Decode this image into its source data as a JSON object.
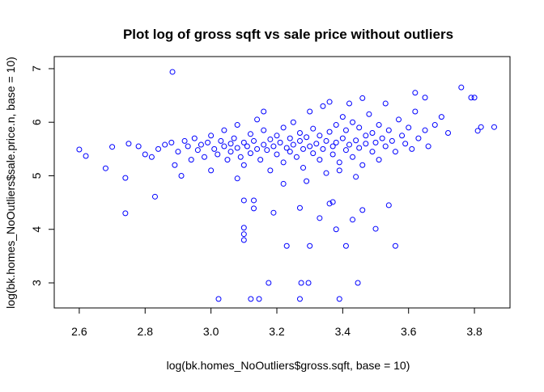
{
  "chart_data": {
    "type": "scatter",
    "title": "Plot log of gross sqft vs sale price without outliers",
    "x_label": "log(bk.homes_NoOutliers$gross.sqft, base = 10)",
    "y_label": "log(bk.homes_NoOutliers$sale.price.n, base = 10)",
    "color": "#0000ff",
    "xlim": [
      2.524,
      3.908
    ],
    "ylim": [
      2.532,
      7.226
    ],
    "xticks": [
      {
        "value": 2.6,
        "label": "2.6"
      },
      {
        "value": 2.8,
        "label": "2.8"
      },
      {
        "value": 3.0,
        "label": "3.0"
      },
      {
        "value": 3.2,
        "label": "3.2"
      },
      {
        "value": 3.4,
        "label": "3.4"
      },
      {
        "value": 3.6,
        "label": "3.6"
      },
      {
        "value": 3.8,
        "label": "3.8"
      }
    ],
    "yticks": [
      3,
      4,
      5,
      6,
      7
    ],
    "x": [
      2.883,
      2.6,
      2.62,
      2.68,
      2.7,
      2.74,
      2.74,
      2.83,
      3.023,
      3.121,
      3.146,
      3.175,
      3.274,
      3.296,
      3.27,
      3.39,
      3.446,
      3.1,
      3.1,
      3.1,
      3.1,
      3.13,
      3.13,
      3.19,
      3.23,
      3.3,
      3.41,
      3.56,
      3.5,
      3.38,
      3.43,
      3.36,
      3.37,
      3.46,
      3.54,
      3.33,
      3.27,
      3.82,
      3.86,
      3.79,
      3.8,
      3.76,
      3.81,
      3.62,
      3.65,
      2.75,
      2.78,
      2.8,
      2.82,
      2.84,
      2.86,
      2.88,
      2.89,
      2.9,
      2.91,
      2.92,
      2.93,
      2.94,
      2.95,
      2.96,
      2.97,
      2.98,
      2.99,
      3.0,
      3.0,
      3.01,
      3.02,
      3.03,
      3.04,
      3.04,
      3.05,
      3.06,
      3.06,
      3.07,
      3.08,
      3.08,
      3.09,
      3.1,
      3.1,
      3.11,
      3.12,
      3.12,
      3.13,
      3.14,
      3.14,
      3.15,
      3.16,
      3.16,
      3.17,
      3.18,
      3.18,
      3.19,
      3.2,
      3.2,
      3.21,
      3.22,
      3.22,
      3.23,
      3.24,
      3.24,
      3.25,
      3.25,
      3.26,
      3.27,
      3.27,
      3.28,
      3.28,
      3.29,
      3.3,
      3.3,
      3.31,
      3.31,
      3.32,
      3.33,
      3.33,
      3.34,
      3.34,
      3.35,
      3.35,
      3.36,
      3.37,
      3.37,
      3.38,
      3.38,
      3.39,
      3.4,
      3.4,
      3.41,
      3.41,
      3.42,
      3.43,
      3.43,
      3.44,
      3.45,
      3.45,
      3.46,
      3.47,
      3.47,
      3.48,
      3.49,
      3.49,
      3.5,
      3.51,
      3.51,
      3.52,
      3.53,
      3.53,
      3.54,
      3.55,
      3.56,
      3.57,
      3.58,
      3.59,
      3.6,
      3.61,
      3.62,
      3.63,
      3.65,
      3.66,
      3.68,
      3.7,
      3.72,
      3.44,
      3.29,
      3.22,
      3.08,
      3.16,
      3.36,
      3.42,
      3.46,
      3.39
    ],
    "values": [
      6.94,
      5.49,
      5.37,
      5.14,
      5.54,
      4.96,
      4.3,
      4.61,
      2.7,
      2.7,
      2.7,
      3.0,
      3.0,
      3.0,
      2.7,
      2.7,
      3.0,
      4.03,
      3.91,
      3.8,
      4.54,
      4.54,
      4.39,
      4.31,
      3.69,
      3.69,
      3.69,
      3.69,
      4.01,
      4.0,
      4.18,
      4.48,
      4.51,
      4.36,
      4.45,
      4.21,
      4.4,
      5.91,
      5.91,
      6.46,
      6.46,
      6.65,
      5.84,
      6.55,
      6.46,
      5.6,
      5.55,
      5.4,
      5.35,
      5.5,
      5.58,
      5.62,
      5.2,
      5.45,
      5.0,
      5.65,
      5.55,
      5.3,
      5.7,
      5.48,
      5.58,
      5.35,
      5.62,
      5.75,
      5.1,
      5.5,
      5.4,
      5.65,
      5.55,
      5.85,
      5.3,
      5.6,
      5.45,
      5.7,
      5.52,
      5.95,
      5.35,
      5.62,
      5.2,
      5.55,
      5.78,
      5.42,
      5.65,
      5.5,
      6.05,
      5.3,
      5.58,
      5.85,
      5.48,
      5.68,
      5.1,
      5.55,
      5.75,
      5.4,
      5.62,
      5.25,
      5.9,
      5.52,
      5.7,
      5.45,
      6.0,
      5.58,
      5.35,
      5.65,
      5.8,
      5.5,
      5.15,
      5.72,
      5.55,
      6.2,
      5.42,
      5.88,
      5.6,
      5.3,
      5.75,
      5.5,
      6.3,
      5.65,
      5.05,
      5.82,
      5.55,
      5.4,
      5.95,
      5.62,
      5.25,
      5.7,
      6.1,
      5.48,
      5.85,
      5.58,
      5.35,
      6.0,
      5.66,
      5.52,
      5.9,
      5.2,
      5.75,
      5.6,
      6.15,
      5.45,
      5.8,
      5.62,
      5.95,
      5.3,
      5.7,
      5.55,
      6.35,
      5.85,
      5.65,
      5.45,
      6.05,
      5.75,
      5.6,
      5.9,
      5.5,
      6.2,
      5.7,
      5.85,
      5.55,
      5.95,
      6.1,
      5.8,
      4.98,
      4.9,
      4.85,
      4.95,
      6.2,
      6.38,
      6.35,
      6.45,
      5.1
    ]
  }
}
